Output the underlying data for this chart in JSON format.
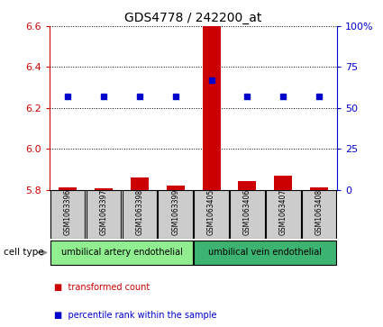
{
  "title": "GDS4778 / 242200_at",
  "samples": [
    "GSM1063396",
    "GSM1063397",
    "GSM1063398",
    "GSM1063399",
    "GSM1063405",
    "GSM1063406",
    "GSM1063407",
    "GSM1063408"
  ],
  "transformed_count": [
    5.812,
    5.808,
    5.858,
    5.821,
    6.6,
    5.84,
    5.87,
    5.81
  ],
  "percentile_rank": [
    57,
    57,
    57,
    57,
    67,
    57,
    57,
    57
  ],
  "ylim_left": [
    5.8,
    6.6
  ],
  "ylim_right": [
    0,
    100
  ],
  "yticks_left": [
    5.8,
    6.0,
    6.2,
    6.4,
    6.6
  ],
  "yticks_right": [
    0,
    25,
    50,
    75,
    100
  ],
  "ytick_labels_right": [
    "0",
    "25",
    "50",
    "75",
    "100%"
  ],
  "cell_type_labels": [
    "umbilical artery endothelial",
    "umbilical vein endothelial"
  ],
  "cell_type_group1_count": 4,
  "cell_type_group2_count": 4,
  "cell_type_color1": "#90EE90",
  "cell_type_color2": "#3CB371",
  "bar_color": "#cc0000",
  "dot_color": "#0000cc",
  "bar_width": 0.5,
  "baseline": 5.8,
  "background_color": "#ffffff",
  "grid_color": "#000000",
  "label_box_color": "#cccccc",
  "legend_square_red": "■",
  "legend_square_blue": "■",
  "legend_text_red": "transformed count",
  "legend_text_blue": "percentile rank within the sample"
}
